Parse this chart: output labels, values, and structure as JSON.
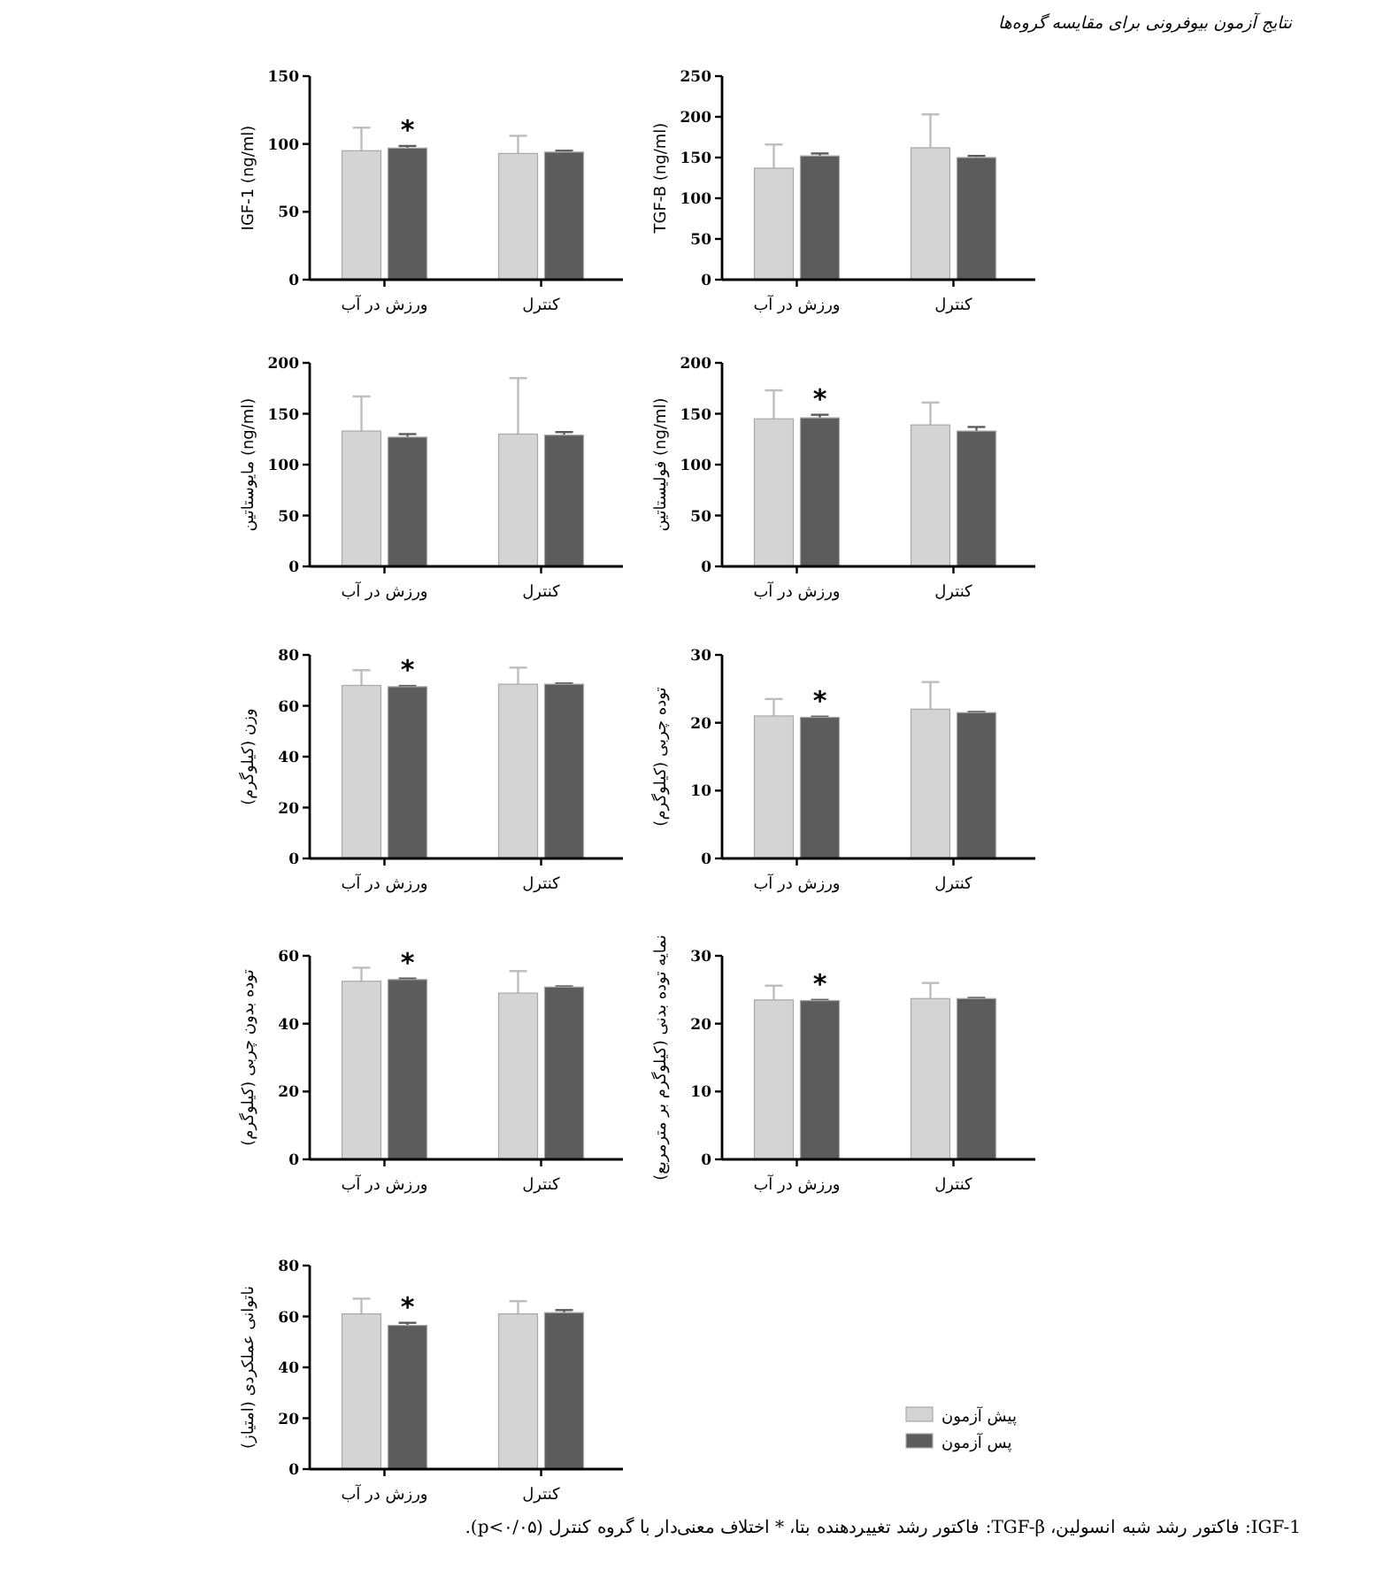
{
  "chart_data": [
    {
      "type": "bar",
      "ylabel": "IGF-1 (ng/ml)",
      "categories": [
        "ورزش در آب",
        "کنترل"
      ],
      "ylim": [
        0,
        150
      ],
      "yticks": [
        0,
        50,
        100,
        150
      ],
      "series": [
        {
          "color": "#d4d4d4",
          "values": [
            95,
            93
          ],
          "errors": [
            17,
            13
          ]
        },
        {
          "color": "#5c5c5c",
          "values": [
            97,
            94
          ],
          "errors": [
            1.5,
            1
          ]
        }
      ],
      "annotations": [
        {
          "text": "*",
          "x": "ورزش در آب",
          "y": 98.5
        }
      ]
    },
    {
      "type": "bar",
      "title": "نتایج آزمون بیوفرونی برای مقایسه گروه‌ها",
      "ylabel": "TGF-B (ng/ml)",
      "categories": [
        "ورزش در آب",
        "کنترل"
      ],
      "ylim": [
        0,
        250
      ],
      "yticks": [
        0,
        50,
        100,
        150,
        200,
        250
      ],
      "series": [
        {
          "color": "#d4d4d4",
          "values": [
            137,
            162
          ],
          "errors": [
            29,
            41
          ]
        },
        {
          "color": "#5c5c5c",
          "values": [
            152,
            150
          ],
          "errors": [
            3,
            2
          ]
        }
      ]
    },
    {
      "type": "bar",
      "ylabel": "مایوستاتین (ng/ml)",
      "categories": [
        "ورزش در آب",
        "کنترل"
      ],
      "ylim": [
        0,
        200
      ],
      "yticks": [
        0,
        50,
        100,
        150,
        200
      ],
      "series": [
        {
          "color": "#d4d4d4",
          "values": [
            133,
            130
          ],
          "errors": [
            34,
            55
          ]
        },
        {
          "color": "#5c5c5c",
          "values": [
            127,
            129
          ],
          "errors": [
            3,
            3
          ]
        }
      ]
    },
    {
      "type": "bar",
      "ylabel": "فولیستاتین (ng/ml)",
      "categories": [
        "ورزش در آب",
        "کنترل"
      ],
      "ylim": [
        0,
        200
      ],
      "yticks": [
        0,
        50,
        100,
        150,
        200
      ],
      "series": [
        {
          "color": "#d4d4d4",
          "values": [
            145,
            139
          ],
          "errors": [
            28,
            22
          ]
        },
        {
          "color": "#5c5c5c",
          "values": [
            146,
            133
          ],
          "errors": [
            3,
            4
          ]
        }
      ],
      "annotations": [
        {
          "text": "*",
          "x": "ورزش در آب",
          "y": 149
        }
      ]
    },
    {
      "type": "bar",
      "ylabel": "وزن (کیلوگرم)",
      "categories": [
        "ورزش در آب",
        "کنترل"
      ],
      "ylim": [
        0,
        80
      ],
      "yticks": [
        0,
        20,
        40,
        60,
        80
      ],
      "series": [
        {
          "color": "#d4d4d4",
          "values": [
            68,
            68.5
          ],
          "errors": [
            6,
            6.5
          ]
        },
        {
          "color": "#5c5c5c",
          "values": [
            67.5,
            68.5
          ],
          "errors": [
            0.3,
            0.3
          ]
        }
      ],
      "annotations": [
        {
          "text": "*",
          "x": "ورزش در آب",
          "y": 67.8
        }
      ]
    },
    {
      "type": "bar",
      "ylabel": "توده چربی (کیلوگرم)",
      "categories": [
        "ورزش در آب",
        "کنترل"
      ],
      "ylim": [
        0,
        30
      ],
      "yticks": [
        0,
        10,
        20,
        30
      ],
      "series": [
        {
          "color": "#d4d4d4",
          "values": [
            21,
            22
          ],
          "errors": [
            2.5,
            4
          ]
        },
        {
          "color": "#5c5c5c",
          "values": [
            20.8,
            21.5
          ],
          "errors": [
            0.1,
            0.1
          ]
        }
      ],
      "annotations": [
        {
          "text": "*",
          "x": "ورزش در آب",
          "y": 20.9
        }
      ]
    },
    {
      "type": "bar",
      "ylabel": "توده بدون چربی (کیلوگرم)",
      "categories": [
        "ورزش در آب",
        "کنترل"
      ],
      "ylim": [
        0,
        60
      ],
      "yticks": [
        0,
        20,
        40,
        60
      ],
      "series": [
        {
          "color": "#d4d4d4",
          "values": [
            52.5,
            49
          ],
          "errors": [
            4,
            6.5
          ]
        },
        {
          "color": "#5c5c5c",
          "values": [
            53,
            50.8
          ],
          "errors": [
            0.3,
            0.2
          ]
        }
      ],
      "annotations": [
        {
          "text": "*",
          "x": "ورزش در آب",
          "y": 53.3
        }
      ]
    },
    {
      "type": "bar",
      "ylabel": "نمایه توده بدنی (کیلوگرم بر مترمربع)",
      "categories": [
        "ورزش در آب",
        "کنترل"
      ],
      "ylim": [
        0,
        30
      ],
      "yticks": [
        0,
        10,
        20,
        30
      ],
      "series": [
        {
          "color": "#d4d4d4",
          "values": [
            23.5,
            23.7
          ],
          "errors": [
            2.1,
            2.3
          ]
        },
        {
          "color": "#5c5c5c",
          "values": [
            23.4,
            23.7
          ],
          "errors": [
            0.1,
            0.1
          ]
        }
      ],
      "annotations": [
        {
          "text": "*",
          "x": "ورزش در آب",
          "y": 23.5
        }
      ]
    },
    {
      "type": "bar",
      "ylabel": "ناتوانی عملکردی (امتیاز)",
      "categories": [
        "ورزش در آب",
        "کنترل"
      ],
      "ylim": [
        0,
        80
      ],
      "yticks": [
        0,
        20,
        40,
        60,
        80
      ],
      "legend": "right",
      "series": [
        {
          "name": "پیش آزمون",
          "color": "#d4d4d4",
          "values": [
            61,
            61
          ],
          "errors": [
            6,
            5
          ]
        },
        {
          "name": "پس آزمون",
          "color": "#5c5c5c",
          "values": [
            56.5,
            61.5
          ],
          "errors": [
            1,
            1
          ]
        }
      ],
      "annotations": [
        {
          "text": "*",
          "x": "ورزش در آب",
          "y": 57.5
        },
        "IGF-1: فاکتور رشد شبه انسولین، TGF-β: فاکتور رشد تغییردهنده بتا، * اختلاف معنی‌دار با گروه کنترل (p<۰/۰۵)."
      ]
    }
  ]
}
